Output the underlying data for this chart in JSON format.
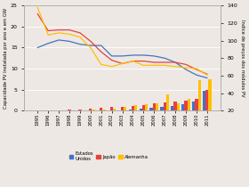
{
  "years": [
    1995,
    1996,
    1997,
    1998,
    1999,
    2000,
    2001,
    2002,
    2003,
    2004,
    2005,
    2006,
    2007,
    2008,
    2009,
    2010,
    2011
  ],
  "line_usa": [
    15.0,
    16.0,
    16.8,
    16.5,
    15.8,
    15.5,
    15.5,
    13.0,
    13.0,
    13.2,
    13.2,
    13.0,
    12.5,
    11.5,
    9.8,
    8.5,
    7.8
  ],
  "line_japan": [
    23.0,
    19.0,
    19.2,
    19.2,
    18.5,
    16.5,
    14.0,
    12.0,
    11.2,
    11.8,
    11.8,
    11.5,
    11.5,
    11.5,
    11.0,
    9.8,
    8.7
  ],
  "line_germany": [
    24.5,
    18.0,
    18.5,
    18.2,
    17.5,
    15.0,
    11.0,
    10.5,
    11.2,
    11.8,
    10.8,
    10.8,
    10.8,
    10.5,
    10.2,
    10.0,
    8.5
  ],
  "bar_usa": [
    0.05,
    0.05,
    0.05,
    0.05,
    0.08,
    0.08,
    0.1,
    0.12,
    0.18,
    0.38,
    0.55,
    0.7,
    0.85,
    1.05,
    1.65,
    2.2,
    4.8
  ],
  "bar_japan": [
    0.1,
    0.1,
    0.18,
    0.25,
    0.35,
    0.45,
    0.65,
    0.85,
    0.95,
    1.15,
    1.45,
    1.75,
    1.9,
    2.1,
    2.5,
    2.9,
    4.9
  ],
  "bar_germany": [
    0.03,
    0.03,
    0.05,
    0.07,
    0.07,
    0.25,
    0.35,
    0.45,
    0.9,
    1.3,
    1.5,
    1.85,
    3.9,
    1.7,
    2.9,
    7.2,
    7.5
  ],
  "color_usa": "#4472c4",
  "color_japan": "#e84040",
  "color_germany": "#ffc000",
  "ylabel_left": "Capacidade PV instalada por ano e em GW",
  "ylabel_right": "Índice de preços dos módulos PV",
  "ylim_left": [
    0,
    25
  ],
  "ylim_right": [
    20,
    140
  ],
  "yticks_left": [
    0,
    5,
    10,
    15,
    20,
    25
  ],
  "yticks_right": [
    20,
    40,
    60,
    80,
    100,
    120,
    140
  ],
  "legend_labels": [
    "Estados\nUnidos",
    "Japão",
    "Alemanha"
  ],
  "bg_color": "#ede8e3"
}
